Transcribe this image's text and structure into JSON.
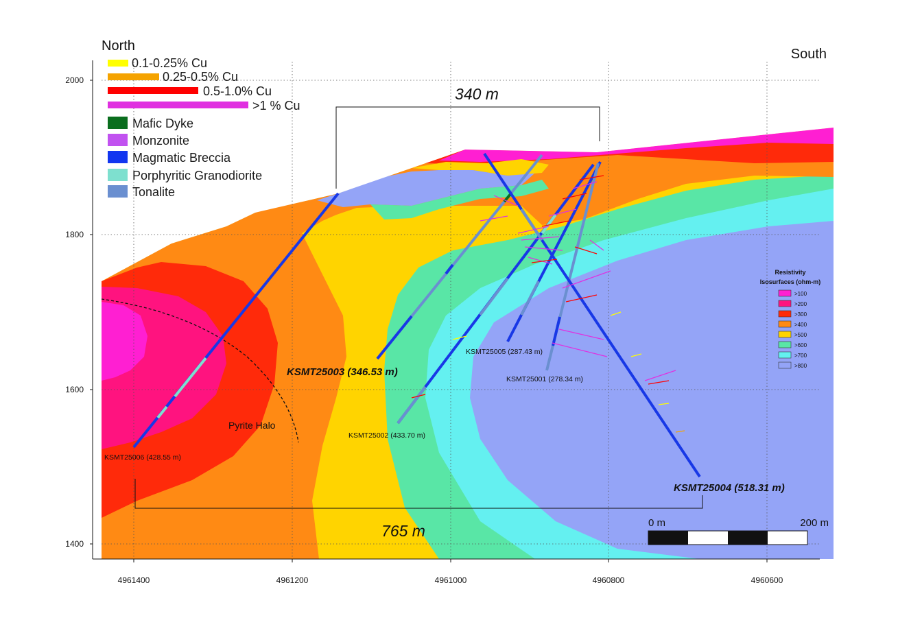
{
  "compass": {
    "left": "North",
    "right": "South"
  },
  "legend_grades": [
    {
      "label": "0.1-0.25% Cu",
      "color": "#ffff00"
    },
    {
      "label": "0.25-0.5% Cu",
      "color": "#f5a300"
    },
    {
      "label": "0.5-1.0% Cu",
      "color": "#ff0000"
    },
    {
      "label": ">1 % Cu",
      "color": "#e030e0"
    }
  ],
  "legend_lithology": [
    {
      "label": "Mafic Dyke",
      "color": "#0a6e1e"
    },
    {
      "label": "Monzonite",
      "color": "#c152f0"
    },
    {
      "label": "Magmatic Breccia",
      "color": "#1236f0"
    },
    {
      "label": "Porphyritic Granodiorite",
      "color": "#7ee0cf"
    },
    {
      "label": "Tonalite",
      "color": "#6a8fd0"
    }
  ],
  "resistivity_legend": {
    "title_line1": "Resistivity",
    "title_line2": "Isosurfaces (ohm-m)",
    "items": [
      {
        "label": ">100",
        "color": "#ff1fd2"
      },
      {
        "label": ">200",
        "color": "#ff137f"
      },
      {
        "label": ">300",
        "color": "#ff2a0a"
      },
      {
        "label": ">400",
        "color": "#ff8a14"
      },
      {
        "label": ">500",
        "color": "#ffd400"
      },
      {
        "label": ">600",
        "color": "#59e6a6"
      },
      {
        "label": ">700",
        "color": "#64f0f0"
      },
      {
        "label": ">800",
        "color": "#94a4f7"
      }
    ]
  },
  "y_axis": {
    "ticks": [
      "2000",
      "1800",
      "1600",
      "1400"
    ]
  },
  "x_axis": {
    "ticks": [
      "4961400",
      "4961200",
      "4961000",
      "4960800",
      "4960600"
    ]
  },
  "dimensions": {
    "top": "340 m",
    "bottom": "765 m"
  },
  "scale_bar": {
    "start": "0 m",
    "end": "200 m"
  },
  "annotations": {
    "pyrite_halo": "Pyrite Halo"
  },
  "drill_holes": {
    "ksmt25006": "KSMT25006 (428.55 m)",
    "ksmt25003": "KSMT25003 (346.53 m)",
    "ksmt25002": "KSMT25002 (433.70 m)",
    "ksmt25005": "KSMT25005 (287.43 m)",
    "ksmt25001": "KSMT25001 (278.34 m)",
    "ksmt25004": "KSMT25004 (518.31 m)"
  }
}
